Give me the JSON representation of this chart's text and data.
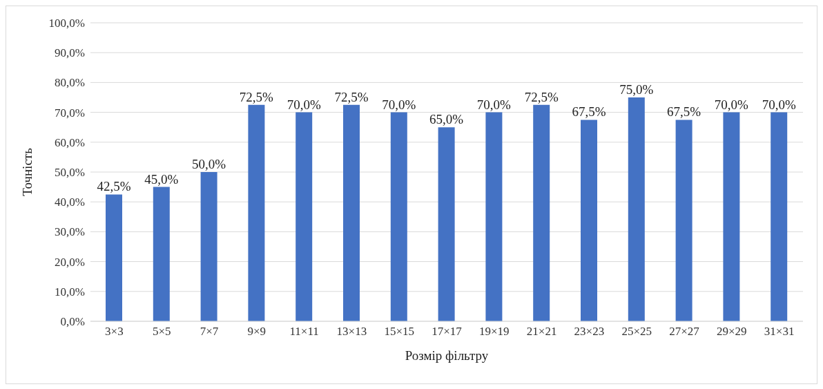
{
  "chart_data": {
    "type": "bar",
    "xlabel": "Розмір фільтру",
    "ylabel": "Точність",
    "categories": [
      "3×3",
      "5×5",
      "7×7",
      "9×9",
      "11×11",
      "13×13",
      "15×15",
      "17×17",
      "19×19",
      "21×21",
      "23×23",
      "25×25",
      "27×27",
      "29×29",
      "31×31"
    ],
    "values": [
      42.5,
      45,
      50,
      72.5,
      70,
      72.5,
      70,
      65,
      70,
      72.5,
      67.5,
      75,
      67.5,
      70,
      70
    ],
    "value_labels": [
      "42,5%",
      "45,0%",
      "50,0%",
      "72,5%",
      "70,0%",
      "72,5%",
      "70,0%",
      "65,0%",
      "70,0%",
      "72,5%",
      "67,5%",
      "75,0%",
      "67,5%",
      "70,0%",
      "70,0%"
    ],
    "color": "#4472c4",
    "ylim": [
      0,
      100
    ],
    "yticks": [
      {
        "value": 0,
        "label": "0,0%"
      },
      {
        "value": 10,
        "label": "10,0%"
      },
      {
        "value": 20,
        "label": "20,0%"
      },
      {
        "value": 30,
        "label": "30,0%"
      },
      {
        "value": 40,
        "label": "40,0%"
      },
      {
        "value": 50,
        "label": "50,0%"
      },
      {
        "value": 60,
        "label": "60,0%"
      },
      {
        "value": 70,
        "label": "70,0%"
      },
      {
        "value": 80,
        "label": "80,0%"
      },
      {
        "value": 90,
        "label": "90,0%"
      },
      {
        "value": 100,
        "label": "100,0%"
      }
    ],
    "grid": "y"
  }
}
